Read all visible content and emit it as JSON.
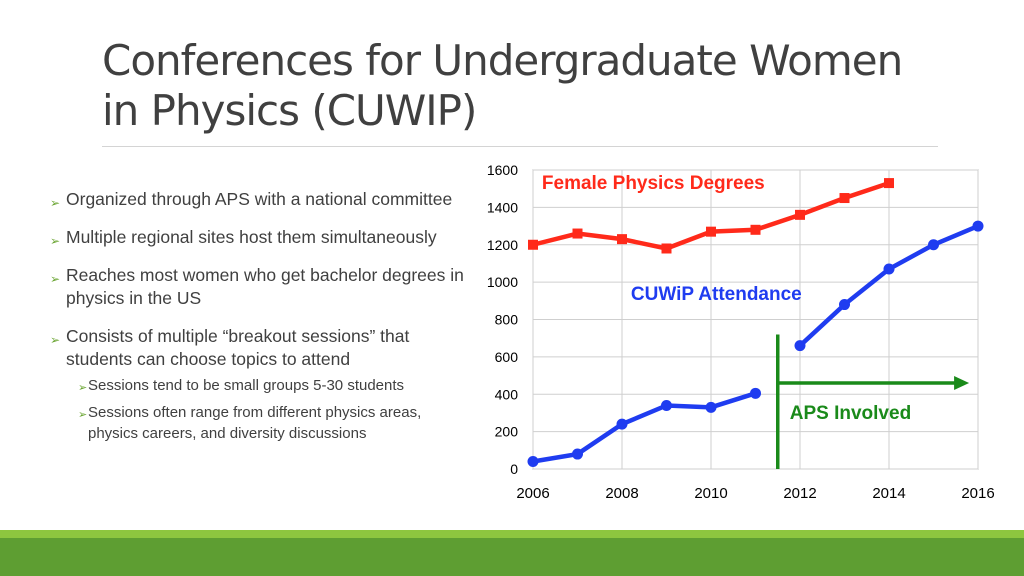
{
  "slide": {
    "title_line1": "Conferences for Undergraduate Women",
    "title_line2": "in Physics (CUWIP)"
  },
  "bullets": [
    {
      "text": "Organized through APS with a national committee"
    },
    {
      "text": "Multiple regional sites host them simultaneously"
    },
    {
      "text": "Reaches most women who get bachelor degrees in physics in the US"
    },
    {
      "text": "Consists of multiple “breakout sessions” that students can choose topics to attend"
    }
  ],
  "sub_bullets": [
    {
      "text": "Sessions tend to be small groups 5-30 students"
    },
    {
      "text": "Sessions often range from different physics areas, physics careers, and diversity discussions"
    }
  ],
  "colors": {
    "accent_green": "#6aa532",
    "female_series": "#ff2a1a",
    "cuwip_series": "#1f3cf0",
    "aps_marker": "#1a8a1a",
    "footer_dark": "#5e9e32",
    "footer_light": "#8dc63f"
  },
  "chart_data": {
    "type": "line",
    "title": "",
    "xlabel": "",
    "ylabel": "",
    "xlim": [
      2006,
      2016
    ],
    "ylim": [
      0,
      1600
    ],
    "x_ticks": [
      "2006",
      "2008",
      "2010",
      "2012",
      "2014",
      "2016"
    ],
    "y_ticks": [
      "0",
      "200",
      "400",
      "600",
      "800",
      "1000",
      "1200",
      "1400",
      "1600"
    ],
    "grid": true,
    "series": [
      {
        "name": "Female Physics Degrees",
        "marker": "square",
        "points": [
          [
            2006,
            1200
          ],
          [
            2007,
            1260
          ],
          [
            2008,
            1230
          ],
          [
            2009,
            1180
          ],
          [
            2010,
            1270
          ],
          [
            2011,
            1280
          ],
          [
            2012,
            1360
          ],
          [
            2013,
            1450
          ],
          [
            2014,
            1530
          ]
        ]
      },
      {
        "name": "CUWiP Attendance",
        "marker": "circle",
        "segments": [
          [
            [
              2006,
              40
            ],
            [
              2007,
              80
            ],
            [
              2008,
              240
            ],
            [
              2009,
              340
            ],
            [
              2010,
              330
            ],
            [
              2011,
              405
            ]
          ],
          [
            [
              2012,
              660
            ],
            [
              2013,
              880
            ],
            [
              2014,
              1070
            ],
            [
              2015,
              1200
            ],
            [
              2016,
              1300
            ]
          ]
        ]
      }
    ],
    "annotation": {
      "label": "APS Involved",
      "x": 2011.5,
      "line_from_y": 720,
      "line_to_y": 0,
      "arrow_y": 460,
      "arrow_to_x": 2015.8
    }
  }
}
